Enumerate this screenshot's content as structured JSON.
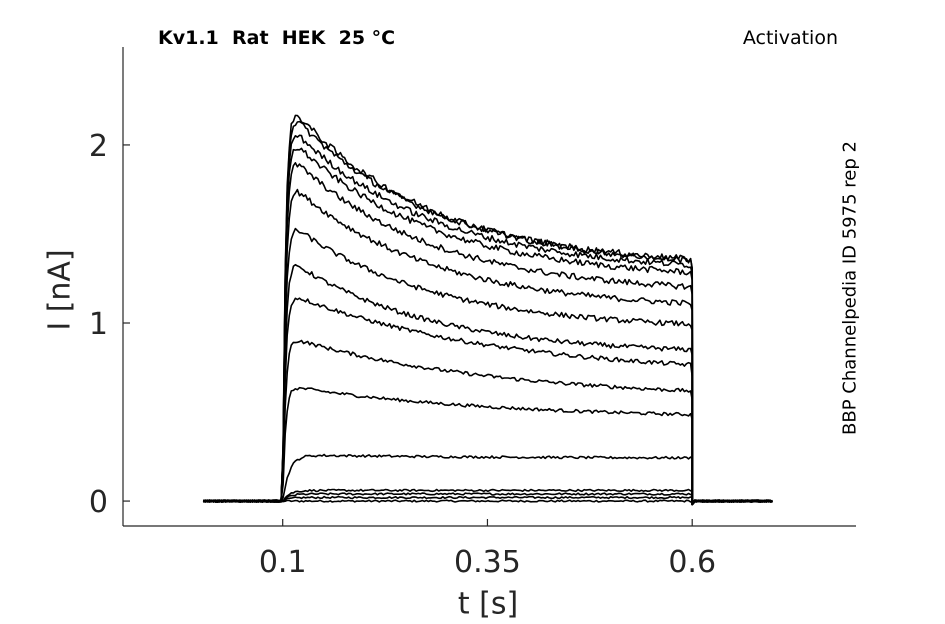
{
  "chart_data": {
    "type": "line",
    "title": "Kv1.1  Rat  HEK  25 °C",
    "protocol": "Activation",
    "source": "BBP Channelpedia ID 5975 rep 2",
    "xlabel": "t [s]",
    "ylabel": "I [nA]",
    "xlim": [
      -0.095,
      0.8
    ],
    "ylim": [
      -0.14,
      2.55
    ],
    "xticks": [
      0.1,
      0.35,
      0.6
    ],
    "xtick_labels": [
      "0.1",
      "0.35",
      "0.6"
    ],
    "yticks": [
      0,
      1,
      2
    ],
    "ytick_labels": [
      "0",
      "1",
      "2"
    ],
    "grid": false,
    "line_color": "#000000",
    "pulse_start": 0.1,
    "pulse_end": 0.6,
    "trace_start": 0.003,
    "trace_end": 0.7,
    "series": [
      {
        "peak": 0.0,
        "end": 0.0
      },
      {
        "peak": 0.02,
        "end": 0.02
      },
      {
        "peak": 0.04,
        "end": 0.04
      },
      {
        "peak": 0.06,
        "end": 0.06
      },
      {
        "peak": 0.26,
        "end": 0.24
      },
      {
        "peak": 0.65,
        "end": 0.46
      },
      {
        "peak": 0.93,
        "end": 0.57
      },
      {
        "peak": 1.18,
        "end": 0.7
      },
      {
        "peak": 1.38,
        "end": 0.82
      },
      {
        "peak": 1.59,
        "end": 0.96
      },
      {
        "peak": 1.82,
        "end": 1.07
      },
      {
        "peak": 1.98,
        "end": 1.16
      },
      {
        "peak": 2.08,
        "end": 1.24
      },
      {
        "peak": 2.15,
        "end": 1.28
      },
      {
        "peak": 2.23,
        "end": 1.31
      },
      {
        "peak": 2.27,
        "end": 1.3
      }
    ]
  }
}
